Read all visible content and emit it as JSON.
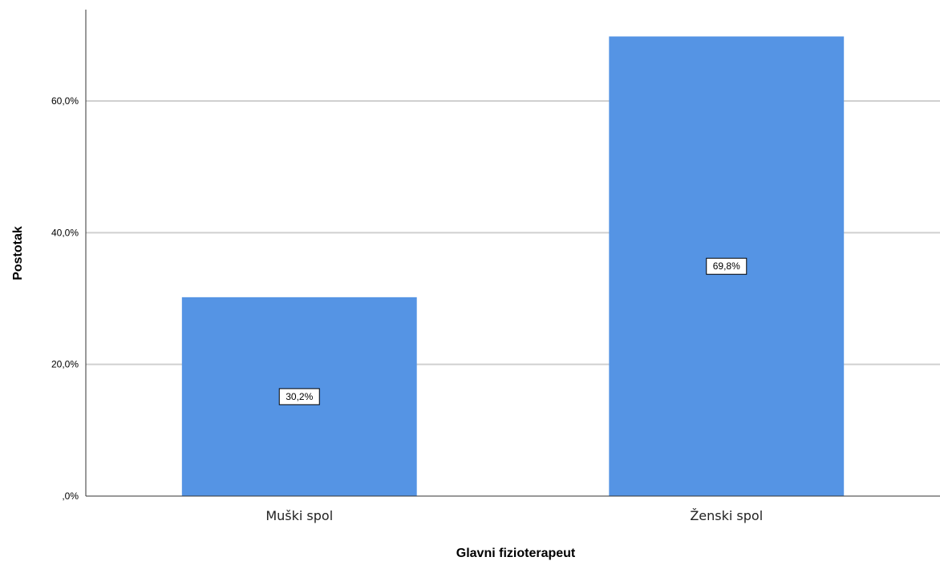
{
  "chart_data": {
    "type": "bar",
    "categories": [
      "Muški spol",
      "Ženski spol"
    ],
    "values": [
      30.2,
      69.8
    ],
    "data_labels": [
      "30,2%",
      "69,8%"
    ],
    "title": "",
    "xlabel": "Glavni fizioterapeut",
    "ylabel": "Postotak",
    "ylim": [
      0,
      75
    ],
    "yticks": [
      0,
      20,
      40,
      60
    ],
    "ytick_labels": [
      ",0%",
      "20,0%",
      "40,0%",
      "60,0%"
    ],
    "grid": true,
    "legend": "none",
    "colors": {
      "bar": "#5594e4",
      "grid": "#d0d0d0",
      "axis": "#333333"
    }
  }
}
